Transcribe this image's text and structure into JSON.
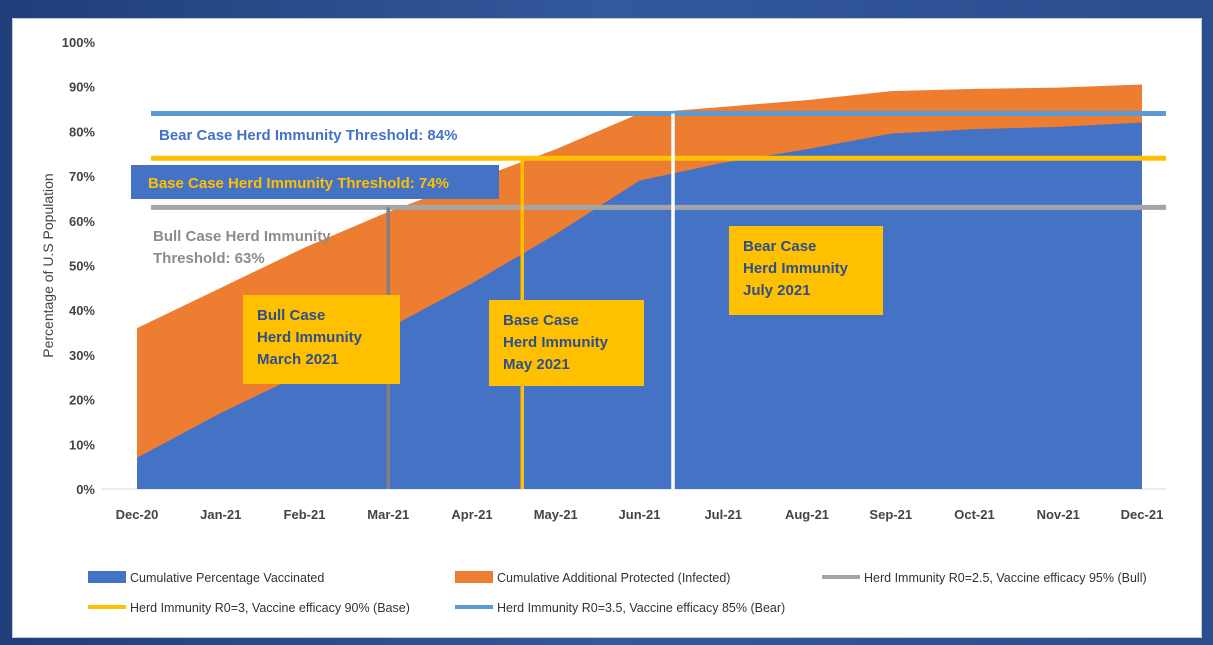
{
  "chart_data": {
    "type": "area",
    "ylabel": "Percentage of U.S Population",
    "categories": [
      "Dec-20",
      "Jan-21",
      "Feb-21",
      "Mar-21",
      "Apr-21",
      "May-21",
      "Jun-21",
      "Jul-21",
      "Aug-21",
      "Sep-21",
      "Oct-21",
      "Nov-21",
      "Dec-21"
    ],
    "ylim": [
      0,
      100
    ],
    "yticks": [
      "0%",
      "10%",
      "20%",
      "30%",
      "40%",
      "50%",
      "60%",
      "70%",
      "80%",
      "90%",
      "100%"
    ],
    "series": [
      {
        "name": "Cumulative Percentage Vaccinated",
        "color": "#4472c4",
        "values": [
          7,
          17,
          26,
          36,
          46,
          57,
          69,
          73,
          76,
          79.5,
          80.5,
          81,
          82
        ]
      },
      {
        "name": "Cumulative Additional Protected (Infected)",
        "color": "#ed7d31",
        "values": [
          36,
          45,
          54,
          62,
          69,
          76,
          84,
          85.5,
          87,
          89,
          89.5,
          89.8,
          90.5
        ]
      }
    ],
    "thresholds": [
      {
        "name": "Herd Immunity R0=2.5, Vaccine efficacy 95% (Bull)",
        "value": 63,
        "color": "#a5a5a5",
        "label": "Bull Case Herd Immunity Threshold: 63%",
        "label_lines": [
          "Bull Case Herd Immunity",
          "Threshold: 63%"
        ],
        "vline_x": 3.0
      },
      {
        "name": "Herd Immunity R0=3, Vaccine efficacy 90% (Base)",
        "value": 74,
        "color": "#ffc000",
        "label": "Base Case Herd Immunity Threshold: 74%",
        "vline_x": 4.6
      },
      {
        "name": "Herd Immunity R0=3.5, Vaccine efficacy 85% (Bear)",
        "value": 84,
        "color": "#5b9bd5",
        "label": "Bear Case Herd Immunity Threshold: 84%",
        "vline_x": 6.4
      }
    ],
    "callouts": [
      {
        "lines": [
          "Bull Case",
          "Herd Immunity",
          "March 2021"
        ]
      },
      {
        "lines": [
          "Base Case",
          "Herd Immunity",
          "May 2021"
        ]
      },
      {
        "lines": [
          "Bear Case",
          "Herd Immunity",
          "July 2021"
        ]
      }
    ],
    "grid": false,
    "legend_position": "bottom"
  },
  "colors": {
    "vaccinated": "#4472c4",
    "infected": "#ed7d31",
    "bull": "#a5a5a5",
    "base": "#ffc000",
    "bear": "#5b9bd5",
    "callout_bg": "#ffc000",
    "base_label_bg": "#4472c4"
  }
}
